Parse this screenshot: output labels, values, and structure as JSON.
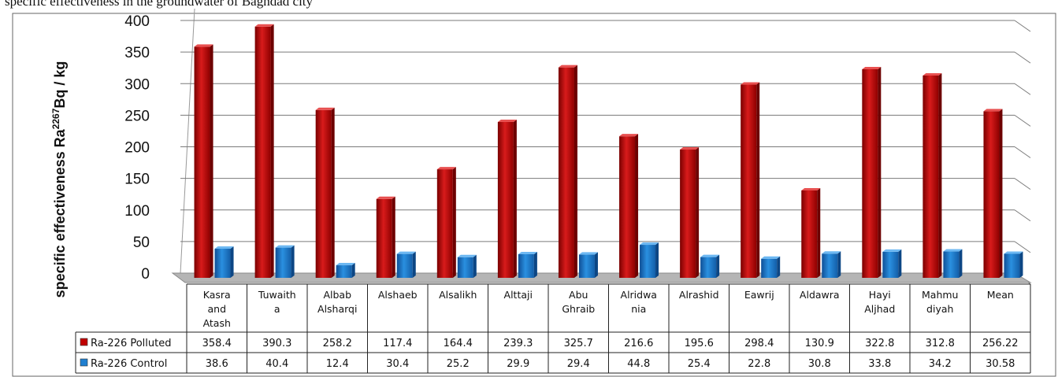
{
  "top_text": "specific effectiveness in the groundwater of Baghdad city",
  "chart_data": {
    "type": "bar",
    "title": "",
    "xlabel": "",
    "ylabel": "specific effectiveness Ra",
    "ylabel_superscript": "2267",
    "ylabel_unit": "Bq / kg",
    "ylim": [
      0,
      400
    ],
    "yticks": [
      0,
      50,
      100,
      150,
      200,
      250,
      300,
      350,
      400
    ],
    "grid": true,
    "legend": "data table below plot",
    "categories": [
      [
        "Kasra",
        "and",
        "Atash"
      ],
      [
        "Tuwaith",
        "a"
      ],
      [
        "Albab",
        "Alsharqi"
      ],
      [
        "Alshaeb"
      ],
      [
        "Alsalikh"
      ],
      [
        "Alttaji"
      ],
      [
        "Abu",
        "Ghraib"
      ],
      [
        "Alridwa",
        "nia"
      ],
      [
        "Alrashid"
      ],
      [
        "Eawrij"
      ],
      [
        "Aldawra"
      ],
      [
        "Hayi",
        "Aljhad"
      ],
      [
        "Mahmu",
        "diyah"
      ],
      [
        "Mean"
      ]
    ],
    "series": [
      {
        "name": "Ra-226 Polluted",
        "color": "#c00000",
        "values": [
          358.4,
          390.3,
          258.2,
          117.4,
          164.4,
          239.3,
          325.7,
          216.6,
          195.6,
          298.4,
          130.9,
          322.8,
          312.8,
          256.22
        ],
        "labels": [
          "358.4",
          "390.3",
          "258.2",
          "117.4",
          "164.4",
          "239.3",
          "325.7",
          "216.6",
          "195.6",
          "298.4",
          "130.9",
          "322.8",
          "312.8",
          "256.22"
        ]
      },
      {
        "name": "Ra-226 Control",
        "color": "#1f7fd0",
        "values": [
          38.6,
          40.4,
          12.4,
          30.4,
          25.2,
          29.9,
          29.4,
          44.8,
          25.4,
          22.8,
          30.8,
          33.8,
          34.2,
          30.58
        ],
        "labels": [
          "38.6",
          "40.4",
          "12.4",
          "30.4",
          "25.2",
          "29.9",
          "29.4",
          "44.8",
          "25.4",
          "22.8",
          "30.8",
          "33.8",
          "34.2",
          "30.58"
        ]
      }
    ]
  }
}
